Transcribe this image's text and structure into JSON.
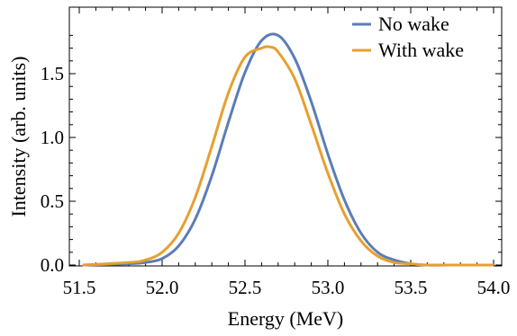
{
  "chart_data": {
    "type": "line",
    "title": "",
    "xlabel": "Energy (MeV)",
    "ylabel": "Intensity (arb. units)",
    "xlim": [
      51.5,
      54.0
    ],
    "ylim": [
      0.0,
      1.8
    ],
    "x_ticks": [
      "51.5",
      "52.0",
      "52.5",
      "53.0",
      "53.5",
      "54.0"
    ],
    "y_ticks": [
      "0.0",
      "0.5",
      "1.0",
      "1.5"
    ],
    "legend_position": "top-right",
    "grid": false,
    "series": [
      {
        "name": "No wake",
        "color": "#5B7DB8",
        "x": [
          51.52,
          51.8,
          51.9,
          52.0,
          52.1,
          52.2,
          52.3,
          52.4,
          52.5,
          52.6,
          52.7,
          52.8,
          52.9,
          53.0,
          53.1,
          53.2,
          53.3,
          53.4,
          53.5,
          53.6,
          53.8,
          54.0
        ],
        "y": [
          0.0,
          0.01,
          0.02,
          0.05,
          0.15,
          0.36,
          0.7,
          1.12,
          1.51,
          1.76,
          1.8,
          1.62,
          1.28,
          0.87,
          0.51,
          0.25,
          0.1,
          0.04,
          0.01,
          0.0,
          0.0,
          0.0
        ]
      },
      {
        "name": "With wake",
        "color": "#E6A02E",
        "x": [
          51.52,
          51.8,
          51.9,
          52.0,
          52.1,
          52.2,
          52.3,
          52.4,
          52.5,
          52.6,
          52.65,
          52.7,
          52.8,
          52.9,
          53.0,
          53.1,
          53.2,
          53.3,
          53.4,
          53.5,
          53.6,
          53.8,
          54.0
        ],
        "y": [
          0.0,
          0.02,
          0.04,
          0.1,
          0.25,
          0.53,
          0.93,
          1.35,
          1.63,
          1.7,
          1.71,
          1.67,
          1.46,
          1.1,
          0.72,
          0.4,
          0.19,
          0.07,
          0.02,
          0.01,
          0.0,
          0.0,
          0.0
        ]
      }
    ]
  }
}
